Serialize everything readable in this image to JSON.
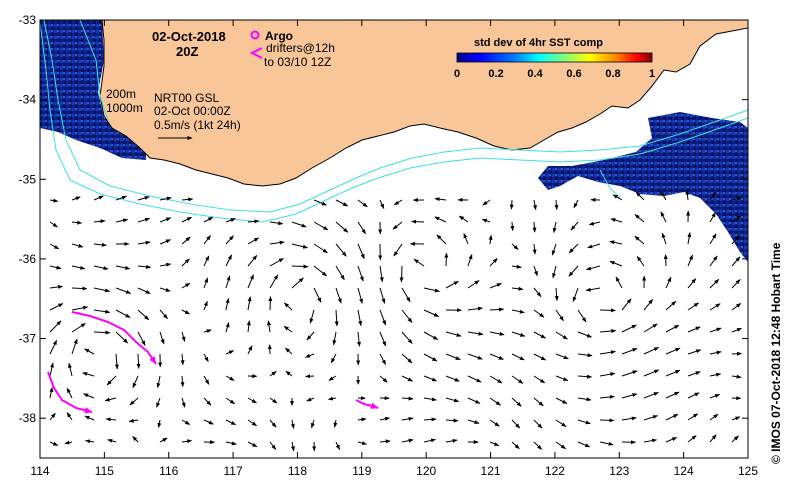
{
  "map": {
    "lon_ticks": [
      "114",
      "115",
      "116",
      "117",
      "118",
      "119",
      "120",
      "121",
      "122",
      "123",
      "124",
      "125"
    ],
    "lat_ticks": [
      "-33",
      "-34",
      "-35",
      "-36",
      "-37",
      "-38"
    ],
    "lon_range": [
      114,
      125
    ],
    "lat_range": [
      -38.5,
      -33
    ]
  },
  "header": {
    "date": "02-Oct-2018",
    "hour": "20Z"
  },
  "legend": {
    "argo_label": "Argo",
    "drifters_label": "drifters@12h",
    "drifters_sub": "to 03/10 12Z",
    "depth_200": "200m",
    "depth_1000": "1000m",
    "product": "NRT00 GSL",
    "analysis_time": "02-Oct 00:00Z",
    "scale_label": "0.5m/s (1kt 24h)"
  },
  "colorbar": {
    "title": "std dev of 4hr SST comp",
    "ticks": [
      "0",
      "0.2",
      "0.4",
      "0.6",
      "0.8",
      "1"
    ],
    "colors": [
      "#00008f",
      "#0000ff",
      "#0080ff",
      "#00ffff",
      "#80ff80",
      "#ffff00",
      "#ff8000",
      "#ff0000",
      "#800000"
    ]
  },
  "credit": "© IMOS 07-Oct-2018 12:48 Hobart Time",
  "colors": {
    "land": "#f8c698",
    "bathymetry": "#40e0e0",
    "drifter": "#ff00ff",
    "sst_dark": "#0a1a80"
  }
}
